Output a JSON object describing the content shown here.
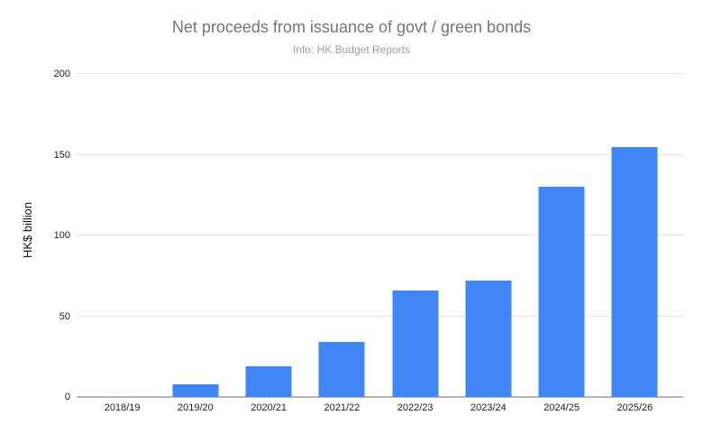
{
  "header": {
    "title": "Net proceeds from issuance of govt / green bonds",
    "subtitle": "Info: HK Budget Reports"
  },
  "chart_data": {
    "type": "bar",
    "title": "Net proceeds from issuance of govt / green bonds",
    "subtitle": "Info: HK Budget Reports",
    "categories": [
      "2018/19",
      "2019/20",
      "2020/21",
      "2021/22",
      "2022/23",
      "2023/24",
      "2024/25",
      "2025/26"
    ],
    "values": [
      0,
      8,
      19,
      34,
      66,
      72,
      130,
      155
    ],
    "xlabel": "",
    "ylabel": "HK$ billion",
    "ylim": [
      0,
      200
    ],
    "yticks": [
      0,
      50,
      100,
      150,
      200
    ],
    "grid": true,
    "legend": "none",
    "bar_color": "#4285f4"
  },
  "colors": {
    "background": "#ffffff",
    "bar": "#4285f4",
    "title_text": "#757575",
    "subtitle_text": "#9e9e9e",
    "axis_line": "#b7b7b7",
    "gridline": "#e6e6e6",
    "tick_text": "#222222"
  }
}
